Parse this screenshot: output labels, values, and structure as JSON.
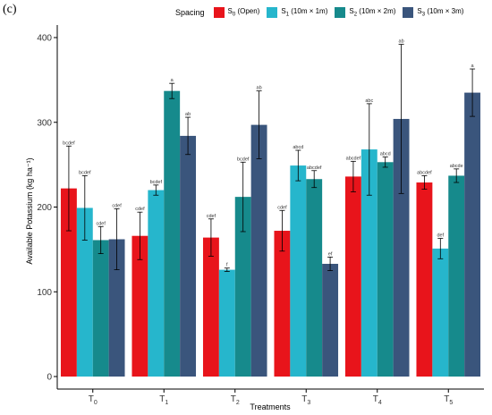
{
  "panel_label": "(c)",
  "legend": {
    "title": "Spacing",
    "items": [
      {
        "base": "S",
        "sub": "0",
        "rest": " (Open)",
        "color": "#e8141b"
      },
      {
        "base": "S",
        "sub": "1",
        "rest": " (10m × 1m)",
        "color": "#26b6cc"
      },
      {
        "base": "S",
        "sub": "2",
        "rest": " (10m × 2m)",
        "color": "#168a8c"
      },
      {
        "base": "S",
        "sub": "3",
        "rest": " (10m × 3m)",
        "color": "#3a557c"
      }
    ]
  },
  "chart_data": {
    "type": "bar",
    "xlabel": "Treatments",
    "ylabel": "Available Potassium (kg ha⁻¹)",
    "ylim": [
      0,
      400
    ],
    "yticks": [
      0,
      100,
      200,
      300,
      400
    ],
    "categories": [
      {
        "base": "T",
        "sub": "0"
      },
      {
        "base": "T",
        "sub": "1"
      },
      {
        "base": "T",
        "sub": "2"
      },
      {
        "base": "T",
        "sub": "3"
      },
      {
        "base": "T",
        "sub": "4"
      },
      {
        "base": "T",
        "sub": "5"
      }
    ],
    "series": [
      {
        "name": "S0 (Open)",
        "color": "#e8141b",
        "values": [
          222,
          166,
          164,
          172,
          236,
          229
        ],
        "errors": [
          50,
          28,
          22,
          24,
          18,
          8
        ],
        "labels": [
          "bcdef",
          "cdef",
          "cdef",
          "cdef",
          "abcdef",
          "abcdef"
        ]
      },
      {
        "name": "S1 (10m × 1m)",
        "color": "#26b6cc",
        "values": [
          199,
          220,
          126,
          249,
          268,
          151
        ],
        "errors": [
          38,
          6,
          2,
          18,
          54,
          12
        ],
        "labels": [
          "bcdef",
          "bcdef",
          "f",
          "abcd",
          "abc",
          "def"
        ]
      },
      {
        "name": "S2 (10m × 2m)",
        "color": "#168a8c",
        "values": [
          161,
          337,
          212,
          233,
          253,
          237
        ],
        "errors": [
          16,
          9,
          41,
          10,
          6,
          8
        ],
        "labels": [
          "cdef",
          "a",
          "bcdef",
          "abcdef",
          "abcd",
          "abcde"
        ]
      },
      {
        "name": "S3 (10m × 3m)",
        "color": "#3a557c",
        "values": [
          162,
          284,
          297,
          133,
          304,
          335
        ],
        "errors": [
          36,
          22,
          40,
          8,
          88,
          28
        ],
        "labels": [
          "cdef",
          "ab",
          "ab",
          "ef",
          "ab",
          "a"
        ]
      }
    ]
  }
}
